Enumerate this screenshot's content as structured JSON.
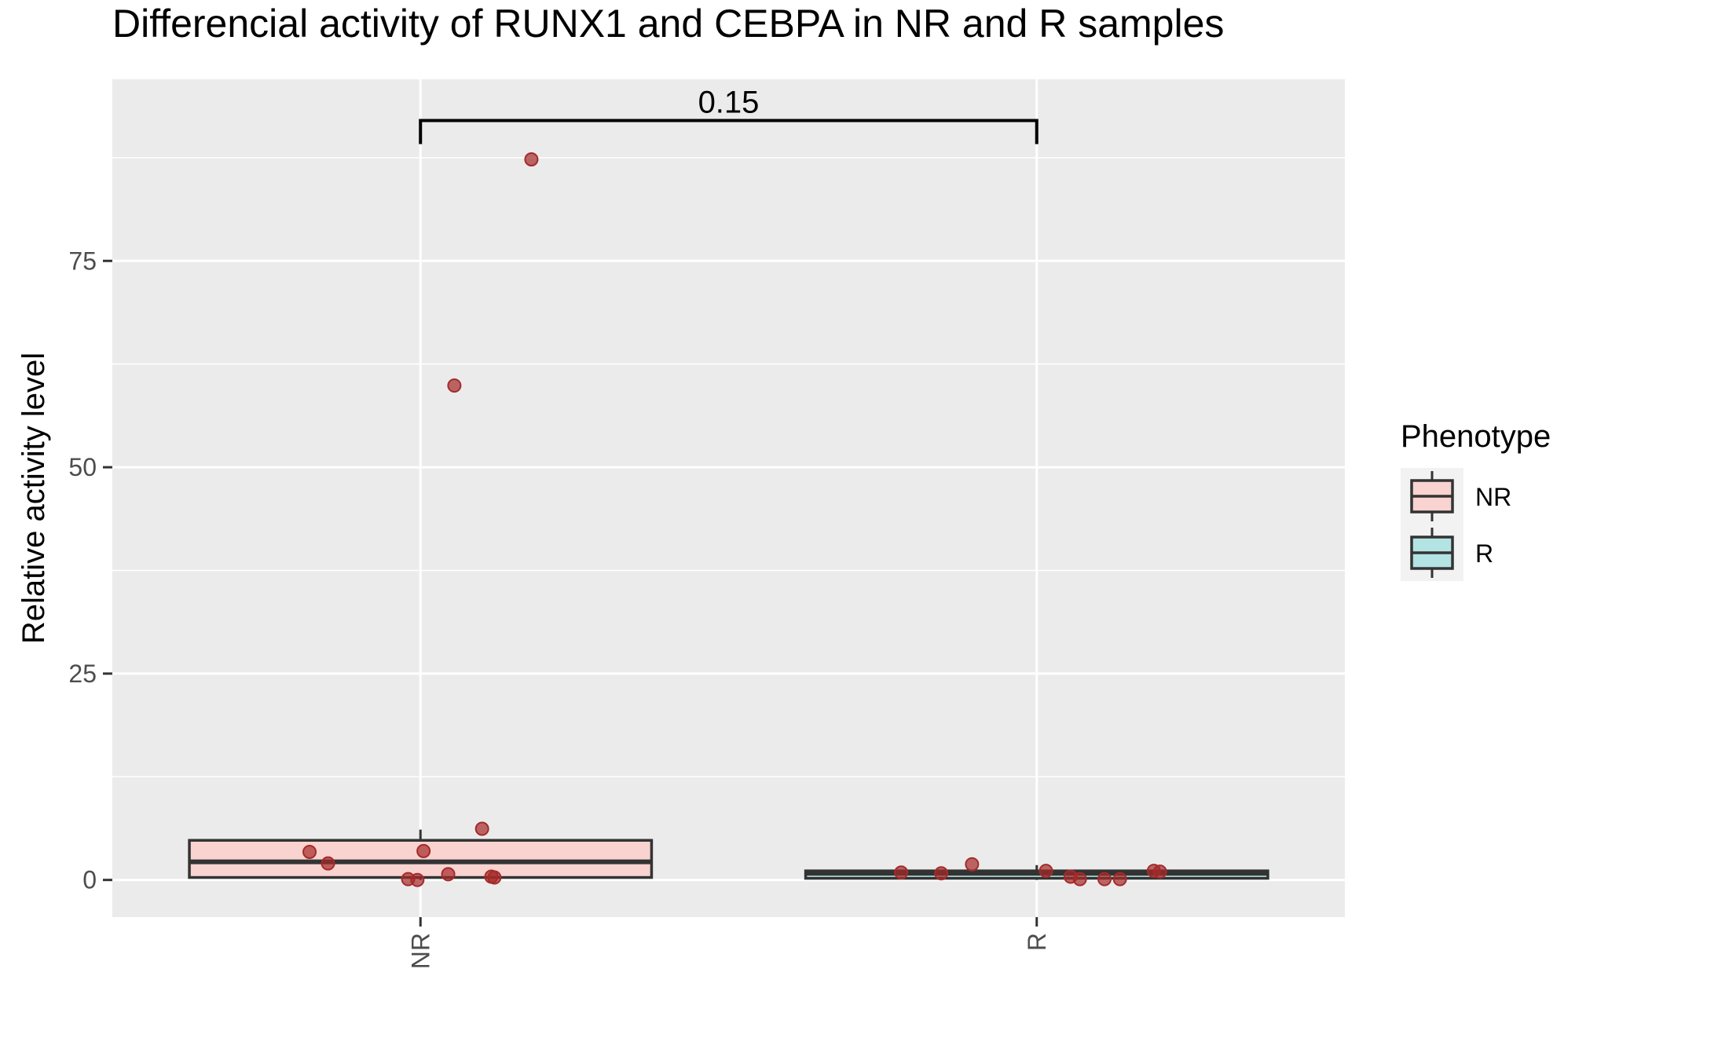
{
  "chart_data": {
    "type": "box",
    "title": "Differencial activity of RUNX1 and CEBPA in NR and R samples",
    "xlabel": "",
    "ylabel": "Relative activity level",
    "categories": [
      "NR",
      "R"
    ],
    "ylim": [
      -4.5,
      97
    ],
    "yticks": [
      0,
      25,
      50,
      75
    ],
    "grid": true,
    "legend": {
      "title": "Phenotype",
      "position": "right",
      "entries": [
        {
          "label": "NR",
          "color": "#f8d3d0"
        },
        {
          "label": "R",
          "color": "#b3e3e3"
        }
      ]
    },
    "boxes": [
      {
        "name": "NR",
        "color": "#f8d3d0",
        "q1": 0.3,
        "median": 2.2,
        "q3": 4.8,
        "whisker_low": 0.0,
        "whisker_high": 6.1
      },
      {
        "name": "R",
        "color": "#b3e3e3",
        "q1": 0.2,
        "median": 0.8,
        "q3": 1.1,
        "whisker_low": 0.0,
        "whisker_high": 1.8
      }
    ],
    "points": [
      {
        "group": "NR",
        "jitter": -0.36,
        "y": 3.4
      },
      {
        "group": "NR",
        "jitter": -0.3,
        "y": 2.0
      },
      {
        "group": "NR",
        "jitter": -0.04,
        "y": 0.1
      },
      {
        "group": "NR",
        "jitter": -0.01,
        "y": 0.0
      },
      {
        "group": "NR",
        "jitter": 0.01,
        "y": 3.5
      },
      {
        "group": "NR",
        "jitter": 0.09,
        "y": 0.7
      },
      {
        "group": "NR",
        "jitter": 0.11,
        "y": 59.9
      },
      {
        "group": "NR",
        "jitter": 0.2,
        "y": 6.2
      },
      {
        "group": "NR",
        "jitter": 0.23,
        "y": 0.4
      },
      {
        "group": "NR",
        "jitter": 0.24,
        "y": 0.3
      },
      {
        "group": "NR",
        "jitter": 0.36,
        "y": 87.3
      },
      {
        "group": "R",
        "jitter": -0.44,
        "y": 0.9
      },
      {
        "group": "R",
        "jitter": -0.31,
        "y": 0.8
      },
      {
        "group": "R",
        "jitter": -0.21,
        "y": 1.9
      },
      {
        "group": "R",
        "jitter": 0.03,
        "y": 1.1
      },
      {
        "group": "R",
        "jitter": 0.11,
        "y": 0.4
      },
      {
        "group": "R",
        "jitter": 0.14,
        "y": 0.1
      },
      {
        "group": "R",
        "jitter": 0.22,
        "y": 0.1
      },
      {
        "group": "R",
        "jitter": 0.27,
        "y": 0.1
      },
      {
        "group": "R",
        "jitter": 0.38,
        "y": 1.1
      },
      {
        "group": "R",
        "jitter": 0.4,
        "y": 1.0
      }
    ],
    "point_color": "#a52a2a",
    "comparison": {
      "groups": [
        "NR",
        "R"
      ],
      "label": "0.15",
      "y": 92
    }
  }
}
